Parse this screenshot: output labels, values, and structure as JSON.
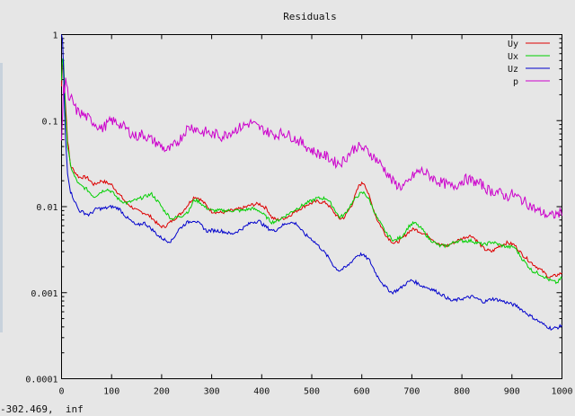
{
  "window": {
    "status_text": "-302.469,  inf"
  },
  "chart_data": {
    "type": "line",
    "title": "Residuals",
    "xlabel": "",
    "ylabel": "",
    "xlim": [
      0,
      1000
    ],
    "ylim": [
      0.0001,
      1
    ],
    "y_scale": "log",
    "grid": false,
    "legend_position": "top-right",
    "x_ticks": [
      0,
      100,
      200,
      300,
      400,
      500,
      600,
      700,
      800,
      900,
      1000
    ],
    "x_tick_labels": [
      "0",
      "100",
      "200",
      "300",
      "400",
      "500",
      "600",
      "700",
      "800",
      "900",
      "1000"
    ],
    "y_ticks": [
      1,
      0.1,
      0.01,
      0.001,
      0.0001
    ],
    "y_tick_labels": [
      "1",
      "0.1",
      "0.01",
      "0.001",
      "0.0001"
    ],
    "series": [
      {
        "name": "Uy",
        "color": "#dd0000",
        "x": [
          0,
          3,
          5,
          8,
          12,
          18,
          25,
          35,
          50,
          65,
          80,
          90,
          100,
          115,
          130,
          150,
          165,
          180,
          195,
          205,
          220,
          240,
          255,
          265,
          275,
          285,
          300,
          320,
          340,
          360,
          380,
          395,
          410,
          420,
          430,
          450,
          470,
          490,
          510,
          530,
          545,
          555,
          565,
          580,
          595,
          605,
          615,
          630,
          650,
          665,
          680,
          695,
          705,
          720,
          735,
          755,
          770,
          790,
          810,
          820,
          830,
          845,
          860,
          875,
          890,
          905,
          920,
          940,
          960,
          975,
          990,
          1000
        ],
        "y": [
          0.25,
          0.6,
          0.3,
          0.15,
          0.06,
          0.03,
          0.026,
          0.022,
          0.022,
          0.018,
          0.02,
          0.019,
          0.018,
          0.014,
          0.011,
          0.009,
          0.0085,
          0.0075,
          0.006,
          0.0058,
          0.0068,
          0.0085,
          0.011,
          0.013,
          0.0125,
          0.011,
          0.0088,
          0.0085,
          0.009,
          0.0095,
          0.0105,
          0.0108,
          0.0095,
          0.0075,
          0.007,
          0.0075,
          0.009,
          0.0105,
          0.0115,
          0.011,
          0.0085,
          0.0072,
          0.0075,
          0.0105,
          0.018,
          0.019,
          0.013,
          0.0072,
          0.0045,
          0.0037,
          0.0042,
          0.0052,
          0.0055,
          0.005,
          0.0045,
          0.0036,
          0.0035,
          0.004,
          0.0045,
          0.0046,
          0.004,
          0.0032,
          0.003,
          0.0035,
          0.0038,
          0.0036,
          0.0028,
          0.0022,
          0.0018,
          0.0015,
          0.0016,
          0.0017
        ]
      },
      {
        "name": "Ux",
        "color": "#00d000",
        "x": [
          0,
          3,
          5,
          8,
          12,
          18,
          25,
          35,
          50,
          65,
          80,
          90,
          100,
          115,
          130,
          150,
          165,
          180,
          195,
          205,
          220,
          240,
          255,
          265,
          275,
          285,
          300,
          320,
          340,
          360,
          380,
          395,
          410,
          420,
          430,
          450,
          470,
          490,
          510,
          530,
          545,
          555,
          565,
          580,
          595,
          605,
          615,
          630,
          650,
          665,
          680,
          695,
          705,
          720,
          735,
          755,
          770,
          790,
          810,
          820,
          830,
          845,
          860,
          875,
          890,
          905,
          920,
          940,
          960,
          975,
          990,
          1000
        ],
        "y": [
          0.3,
          0.7,
          0.35,
          0.12,
          0.05,
          0.03,
          0.023,
          0.018,
          0.016,
          0.013,
          0.015,
          0.016,
          0.015,
          0.012,
          0.011,
          0.012,
          0.013,
          0.014,
          0.011,
          0.009,
          0.0072,
          0.0078,
          0.009,
          0.012,
          0.0115,
          0.01,
          0.009,
          0.009,
          0.009,
          0.009,
          0.0095,
          0.009,
          0.0075,
          0.0066,
          0.0068,
          0.008,
          0.0095,
          0.011,
          0.0125,
          0.0125,
          0.0095,
          0.0075,
          0.008,
          0.011,
          0.014,
          0.0145,
          0.012,
          0.0075,
          0.0048,
          0.004,
          0.0045,
          0.006,
          0.0065,
          0.0055,
          0.0042,
          0.0035,
          0.0035,
          0.004,
          0.004,
          0.004,
          0.0038,
          0.0036,
          0.0039,
          0.0036,
          0.0034,
          0.0034,
          0.0025,
          0.0018,
          0.0016,
          0.0014,
          0.0013,
          0.0015
        ]
      },
      {
        "name": "Uz",
        "color": "#0000cc",
        "x": [
          0,
          3,
          5,
          8,
          12,
          18,
          25,
          35,
          45,
          55,
          70,
          85,
          100,
          115,
          130,
          150,
          165,
          180,
          195,
          210,
          220,
          235,
          250,
          265,
          280,
          290,
          300,
          320,
          340,
          360,
          380,
          395,
          405,
          415,
          425,
          440,
          455,
          470,
          485,
          500,
          520,
          535,
          545,
          555,
          570,
          590,
          600,
          615,
          630,
          645,
          660,
          675,
          690,
          700,
          720,
          740,
          760,
          780,
          800,
          820,
          830,
          845,
          860,
          875,
          895,
          910,
          925,
          945,
          965,
          980,
          995,
          1000
        ],
        "y": [
          1,
          0.8,
          0.2,
          0.06,
          0.025,
          0.015,
          0.012,
          0.009,
          0.0085,
          0.008,
          0.0095,
          0.0095,
          0.01,
          0.0095,
          0.0075,
          0.006,
          0.0065,
          0.0055,
          0.0045,
          0.004,
          0.004,
          0.0055,
          0.0065,
          0.007,
          0.006,
          0.0052,
          0.0053,
          0.0052,
          0.0048,
          0.0055,
          0.0066,
          0.0068,
          0.006,
          0.0055,
          0.0052,
          0.006,
          0.0066,
          0.0063,
          0.0048,
          0.0042,
          0.0032,
          0.0025,
          0.002,
          0.0018,
          0.002,
          0.0027,
          0.0028,
          0.0024,
          0.0016,
          0.0012,
          0.001,
          0.0011,
          0.0013,
          0.0014,
          0.0012,
          0.0011,
          0.00095,
          0.0008,
          0.00085,
          0.0009,
          0.00085,
          0.00078,
          0.00085,
          0.00082,
          0.00075,
          0.0007,
          0.0006,
          0.0005,
          0.00042,
          0.00038,
          0.0004,
          0.00042
        ]
      },
      {
        "name": "p",
        "color": "#cc00cc",
        "x": [
          0,
          2,
          4,
          6,
          8,
          10,
          13,
          16,
          20,
          25,
          30,
          40,
          50,
          60,
          70,
          80,
          90,
          100,
          110,
          120,
          130,
          140,
          150,
          160,
          170,
          180,
          190,
          200,
          210,
          220,
          230,
          240,
          250,
          260,
          270,
          280,
          290,
          300,
          310,
          320,
          330,
          340,
          350,
          360,
          370,
          380,
          390,
          400,
          410,
          420,
          430,
          440,
          450,
          460,
          470,
          480,
          490,
          500,
          510,
          520,
          530,
          540,
          550,
          560,
          570,
          580,
          590,
          600,
          610,
          620,
          630,
          640,
          650,
          660,
          670,
          680,
          690,
          700,
          710,
          720,
          730,
          740,
          750,
          760,
          770,
          780,
          790,
          800,
          810,
          820,
          830,
          840,
          850,
          860,
          870,
          880,
          890,
          900,
          910,
          920,
          930,
          940,
          950,
          960,
          970,
          980,
          990,
          1000
        ],
        "y": [
          0.06,
          0.1,
          0.3,
          0.22,
          0.32,
          0.25,
          0.2,
          0.16,
          0.18,
          0.15,
          0.13,
          0.12,
          0.11,
          0.1,
          0.09,
          0.08,
          0.09,
          0.1,
          0.095,
          0.088,
          0.08,
          0.07,
          0.065,
          0.07,
          0.065,
          0.06,
          0.055,
          0.05,
          0.045,
          0.048,
          0.055,
          0.065,
          0.08,
          0.085,
          0.08,
          0.072,
          0.075,
          0.068,
          0.07,
          0.065,
          0.07,
          0.075,
          0.08,
          0.085,
          0.09,
          0.095,
          0.085,
          0.08,
          0.075,
          0.07,
          0.068,
          0.072,
          0.07,
          0.065,
          0.06,
          0.055,
          0.05,
          0.045,
          0.042,
          0.04,
          0.038,
          0.035,
          0.032,
          0.033,
          0.038,
          0.045,
          0.05,
          0.048,
          0.045,
          0.04,
          0.035,
          0.03,
          0.025,
          0.02,
          0.018,
          0.017,
          0.018,
          0.022,
          0.025,
          0.026,
          0.024,
          0.022,
          0.02,
          0.019,
          0.018,
          0.017,
          0.018,
          0.02,
          0.021,
          0.02,
          0.019,
          0.018,
          0.016,
          0.015,
          0.015,
          0.014,
          0.013,
          0.014,
          0.013,
          0.012,
          0.011,
          0.01,
          0.009,
          0.0085,
          0.008,
          0.0078,
          0.0082,
          0.0085
        ]
      }
    ]
  }
}
